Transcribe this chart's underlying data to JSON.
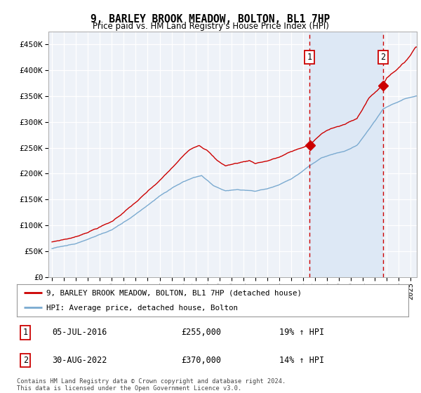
{
  "title": "9, BARLEY BROOK MEADOW, BOLTON, BL1 7HP",
  "subtitle": "Price paid vs. HM Land Registry's House Price Index (HPI)",
  "red_label": "9, BARLEY BROOK MEADOW, BOLTON, BL1 7HP (detached house)",
  "blue_label": "HPI: Average price, detached house, Bolton",
  "annotation1": {
    "num": "1",
    "date": "05-JUL-2016",
    "price": "£255,000",
    "pct": "19% ↑ HPI"
  },
  "annotation2": {
    "num": "2",
    "date": "30-AUG-2022",
    "price": "£370,000",
    "pct": "14% ↑ HPI"
  },
  "footer": "Contains HM Land Registry data © Crown copyright and database right 2024.\nThis data is licensed under the Open Government Licence v3.0.",
  "ylim": [
    0,
    475000
  ],
  "yticks": [
    0,
    50000,
    100000,
    150000,
    200000,
    250000,
    300000,
    350000,
    400000,
    450000
  ],
  "background_color": "#ffffff",
  "plot_bg_color": "#eef2f8",
  "grid_color": "#ffffff",
  "red_color": "#cc0000",
  "blue_color": "#7aaad0",
  "shade_color": "#dde8f5",
  "sale1_t": 2016.542,
  "sale2_t": 2022.667,
  "sale1_y": 255000,
  "sale2_y": 370000,
  "xmin": 1994.7,
  "xmax": 2025.5
}
